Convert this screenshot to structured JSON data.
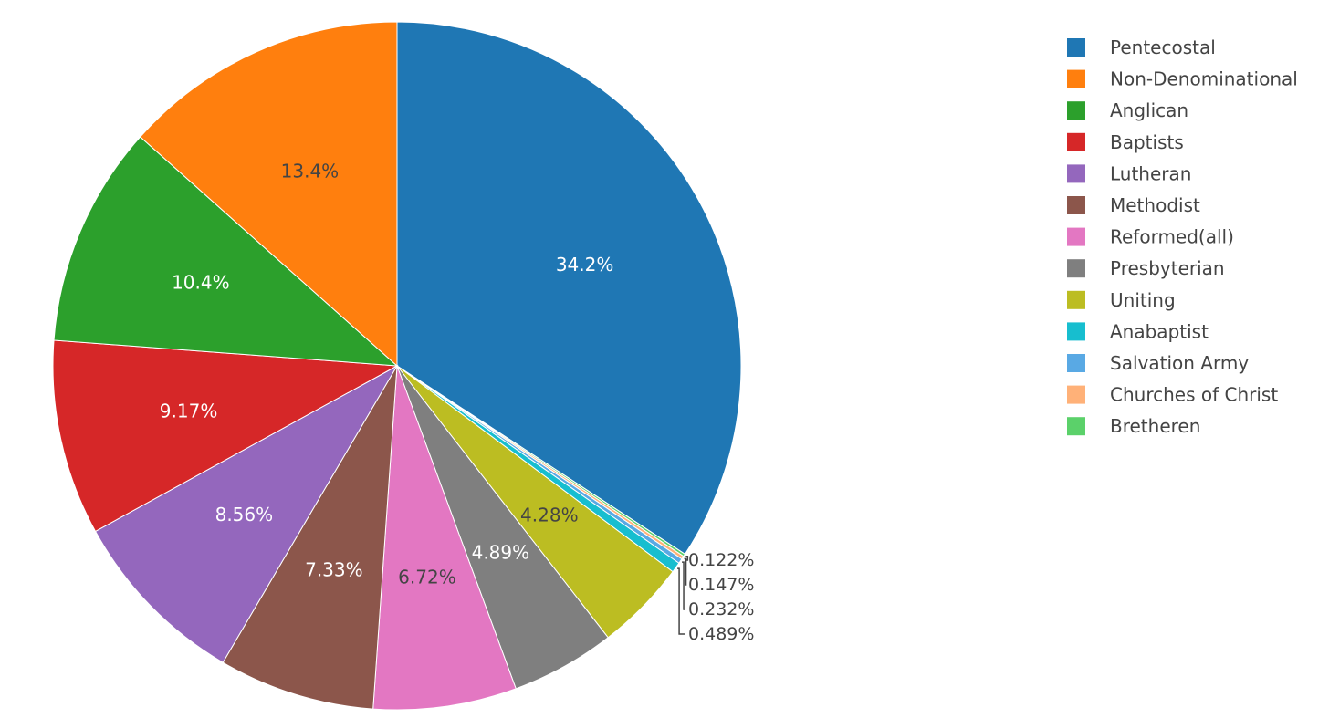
{
  "chart_data": {
    "type": "pie",
    "direction": "clockwise",
    "start_angle_deg": 0,
    "slices": [
      {
        "name": "Pentecostal",
        "value": 34.2,
        "label": "34.2%",
        "color": "#1f77b4",
        "label_color": "#ffffff",
        "label_position": "inside"
      },
      {
        "name": "Bretheren",
        "value": 0.122,
        "label": "0.122%",
        "color": "#5bd16a",
        "label_color": "#444444",
        "label_position": "outside"
      },
      {
        "name": "Churches of Christ",
        "value": 0.147,
        "label": "0.147%",
        "color": "#ffb178",
        "label_color": "#444444",
        "label_position": "outside"
      },
      {
        "name": "Salvation Army",
        "value": 0.232,
        "label": "0.232%",
        "color": "#59a9e4",
        "label_color": "#444444",
        "label_position": "outside"
      },
      {
        "name": "Anabaptist",
        "value": 0.489,
        "label": "0.489%",
        "color": "#17becf",
        "label_color": "#444444",
        "label_position": "outside"
      },
      {
        "name": "Uniting",
        "value": 4.28,
        "label": "4.28%",
        "color": "#bcbd22",
        "label_color": "#444444",
        "label_position": "inside"
      },
      {
        "name": "Presbyterian",
        "value": 4.89,
        "label": "4.89%",
        "color": "#7f7f7f",
        "label_color": "#ffffff",
        "label_position": "inside"
      },
      {
        "name": "Reformed(all)",
        "value": 6.72,
        "label": "6.72%",
        "color": "#e377c2",
        "label_color": "#444444",
        "label_position": "inside"
      },
      {
        "name": "Methodist",
        "value": 7.33,
        "label": "7.33%",
        "color": "#8c564b",
        "label_color": "#ffffff",
        "label_position": "inside"
      },
      {
        "name": "Lutheran",
        "value": 8.56,
        "label": "8.56%",
        "color": "#9467bd",
        "label_color": "#ffffff",
        "label_position": "inside"
      },
      {
        "name": "Baptists",
        "value": 9.17,
        "label": "9.17%",
        "color": "#d62728",
        "label_color": "#ffffff",
        "label_position": "inside"
      },
      {
        "name": "Anglican",
        "value": 10.4,
        "label": "10.4%",
        "color": "#2ca02c",
        "label_color": "#ffffff",
        "label_position": "inside"
      },
      {
        "name": "Non-Denominational",
        "value": 13.4,
        "label": "13.4%",
        "color": "#ff7f0e",
        "label_color": "#444444",
        "label_position": "inside"
      }
    ],
    "legend": {
      "placement": "top-right",
      "items": [
        "Pentecostal",
        "Non-Denominational",
        "Anglican",
        "Baptists",
        "Lutheran",
        "Methodist",
        "Reformed(all)",
        "Presbyterian",
        "Uniting",
        "Anabaptist",
        "Salvation Army",
        "Churches of Christ",
        "Bretheren"
      ]
    }
  }
}
